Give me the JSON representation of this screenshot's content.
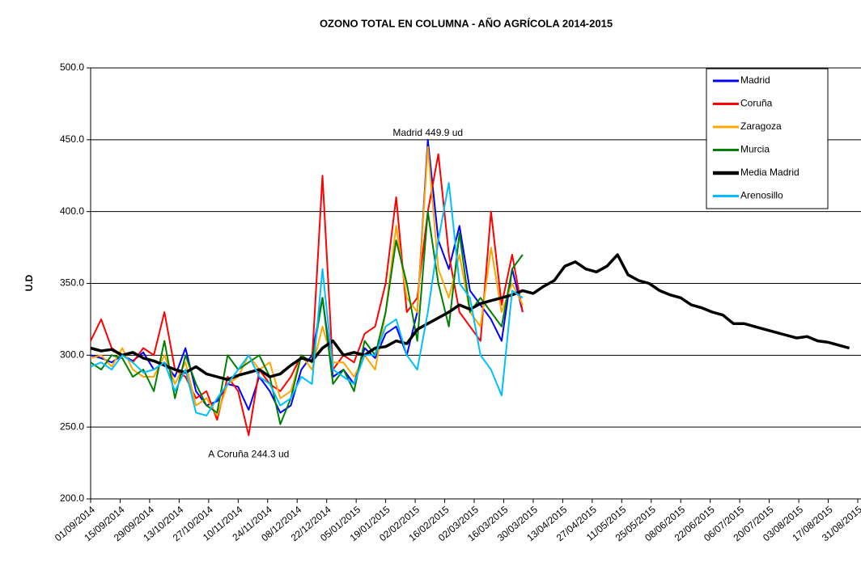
{
  "chart_data": {
    "type": "line",
    "title": "OZONO TOTAL EN COLUMNA  -  AÑO  AGRÍCOLA 2014-2015",
    "y_label": "U.D",
    "x": [
      "2014-09-01",
      "2014-09-06",
      "2014-09-11",
      "2014-09-16",
      "2014-09-21",
      "2014-09-26",
      "2014-10-01",
      "2014-10-06",
      "2014-10-11",
      "2014-10-16",
      "2014-10-21",
      "2014-10-26",
      "2014-10-31",
      "2014-11-05",
      "2014-11-10",
      "2014-11-15",
      "2014-11-20",
      "2014-11-25",
      "2014-11-30",
      "2014-12-05",
      "2014-12-10",
      "2014-12-15",
      "2014-12-20",
      "2014-12-25",
      "2014-12-30",
      "2015-01-04",
      "2015-01-09",
      "2015-01-14",
      "2015-01-19",
      "2015-01-24",
      "2015-01-29",
      "2015-02-03",
      "2015-02-08",
      "2015-02-13",
      "2015-02-18",
      "2015-02-23",
      "2015-02-28",
      "2015-03-05",
      "2015-03-10",
      "2015-03-15",
      "2015-03-20",
      "2015-03-25",
      "2015-03-30",
      "2015-04-04",
      "2015-04-09",
      "2015-04-14",
      "2015-04-19",
      "2015-04-24",
      "2015-04-29",
      "2015-05-04",
      "2015-05-09",
      "2015-05-14",
      "2015-05-19",
      "2015-05-24",
      "2015-05-29",
      "2015-06-03",
      "2015-06-08",
      "2015-06-13",
      "2015-06-18",
      "2015-06-23",
      "2015-06-28",
      "2015-07-03",
      "2015-07-08",
      "2015-07-13",
      "2015-07-18",
      "2015-07-23",
      "2015-07-28",
      "2015-08-02",
      "2015-08-07",
      "2015-08-12",
      "2015-08-17",
      "2015-08-22",
      "2015-08-27"
    ],
    "series": [
      {
        "name": "Madrid",
        "color": "#0000ff",
        "width": 2,
        "values": [
          300,
          298,
          295,
          300,
          296,
          302,
          290,
          295,
          285,
          305,
          275,
          265,
          268,
          280,
          278,
          262,
          285,
          275,
          260,
          265,
          290,
          300,
          340,
          285,
          290,
          280,
          305,
          298,
          315,
          320,
          300,
          330,
          449.9,
          380,
          360,
          390,
          345,
          335,
          325,
          310,
          360,
          330,
          null,
          null,
          null,
          null,
          null,
          null,
          null,
          null,
          null,
          null,
          null,
          null,
          null,
          null,
          null,
          null,
          null,
          null,
          null,
          null,
          null,
          null,
          null,
          null,
          null,
          null,
          null,
          null,
          null,
          null,
          null
        ]
      },
      {
        "name": "Coruña",
        "color": "#ff0000",
        "width": 2,
        "values": [
          310,
          325,
          305,
          300,
          295,
          305,
          300,
          330,
          290,
          285,
          270,
          275,
          255,
          285,
          275,
          244.3,
          290,
          280,
          275,
          285,
          300,
          295,
          425,
          290,
          300,
          295,
          315,
          320,
          350,
          410,
          330,
          340,
          400,
          440,
          370,
          330,
          320,
          310,
          400,
          335,
          370,
          330,
          null,
          null,
          null,
          null,
          null,
          null,
          null,
          null,
          null,
          null,
          null,
          null,
          null,
          null,
          null,
          null,
          null,
          null,
          null,
          null,
          null,
          null,
          null,
          null,
          null,
          null,
          null,
          null,
          null,
          null,
          null
        ]
      },
      {
        "name": "Zaragoza",
        "color": "#ffa500",
        "width": 2,
        "values": [
          298,
          300,
          292,
          305,
          290,
          285,
          285,
          300,
          280,
          295,
          265,
          270,
          258,
          280,
          285,
          300,
          290,
          295,
          270,
          275,
          300,
          290,
          320,
          295,
          295,
          285,
          300,
          290,
          330,
          390,
          340,
          330,
          445,
          360,
          340,
          370,
          330,
          320,
          375,
          330,
          350,
          335,
          null,
          null,
          null,
          null,
          null,
          null,
          null,
          null,
          null,
          null,
          null,
          null,
          null,
          null,
          null,
          null,
          null,
          null,
          null,
          null,
          null,
          null,
          null,
          null,
          null,
          null,
          null,
          null,
          null,
          null,
          null
        ]
      },
      {
        "name": "Murcia",
        "color": "#008000",
        "width": 2,
        "values": [
          295,
          290,
          300,
          298,
          285,
          290,
          275,
          310,
          270,
          300,
          280,
          265,
          260,
          300,
          290,
          295,
          300,
          285,
          252,
          270,
          300,
          295,
          340,
          280,
          290,
          275,
          310,
          300,
          330,
          380,
          350,
          310,
          400,
          350,
          320,
          385,
          330,
          340,
          330,
          320,
          360,
          370,
          null,
          null,
          null,
          null,
          null,
          null,
          null,
          null,
          null,
          null,
          null,
          null,
          null,
          null,
          null,
          null,
          null,
          null,
          null,
          null,
          null,
          null,
          null,
          null,
          null,
          null,
          null,
          null,
          null,
          null,
          null
        ]
      },
      {
        "name": "Media Madrid",
        "color": "#000000",
        "width": 3.5,
        "values": [
          305,
          303,
          304,
          300,
          302,
          298,
          296,
          293,
          290,
          288,
          292,
          287,
          285,
          283,
          286,
          288,
          290,
          285,
          287,
          293,
          298,
          296,
          305,
          310,
          300,
          302,
          300,
          305,
          306,
          310,
          308,
          318,
          322,
          326,
          330,
          335,
          332,
          336,
          338,
          340,
          342,
          345,
          343,
          348,
          352,
          362,
          365,
          360,
          358,
          362,
          370,
          356,
          352,
          350,
          345,
          342,
          340,
          335,
          333,
          330,
          328,
          322,
          322,
          320,
          318,
          316,
          314,
          312,
          313,
          310,
          309,
          307,
          305
        ]
      },
      {
        "name": "Arenosillo",
        "color": "#00bfff",
        "width": 2,
        "values": [
          292,
          295,
          290,
          300,
          295,
          288,
          290,
          295,
          275,
          290,
          260,
          258,
          270,
          280,
          290,
          300,
          285,
          280,
          265,
          270,
          285,
          280,
          360,
          290,
          285,
          280,
          300,
          300,
          320,
          325,
          300,
          290,
          330,
          380,
          420,
          350,
          340,
          300,
          290,
          272,
          345,
          340,
          null,
          null,
          null,
          null,
          null,
          null,
          null,
          null,
          null,
          null,
          null,
          null,
          null,
          null,
          null,
          null,
          null,
          null,
          null,
          null,
          null,
          null,
          null,
          null,
          null,
          null,
          null,
          null,
          null,
          null,
          null
        ]
      }
    ],
    "annotations": [
      {
        "text": "Madrid 449.9 ud",
        "x": "2015-02-08",
        "y": 449.9
      },
      {
        "text": "A Coruña 244.3 ud",
        "x": "2014-11-15",
        "y": 244.3
      }
    ],
    "ylim": [
      200,
      500
    ],
    "yticks": [
      {
        "value": 200,
        "label": "200.0"
      },
      {
        "value": 250,
        "label": "250.0"
      },
      {
        "value": 300,
        "label": "300.0"
      },
      {
        "value": 350,
        "label": "350.0"
      },
      {
        "value": 400,
        "label": "400.0"
      },
      {
        "value": 450,
        "label": "450.0"
      },
      {
        "value": 500,
        "label": "500.0"
      }
    ],
    "xlim": [
      "2014-09-01",
      "2015-08-31"
    ],
    "xticks": [
      {
        "value": "2014-09-01",
        "label": "01/09/2014"
      },
      {
        "value": "2014-09-15",
        "label": "15/09/2014"
      },
      {
        "value": "2014-09-29",
        "label": "29/09/2014"
      },
      {
        "value": "2014-10-13",
        "label": "13/10/2014"
      },
      {
        "value": "2014-10-27",
        "label": "27/10/2014"
      },
      {
        "value": "2014-11-10",
        "label": "10/11/2014"
      },
      {
        "value": "2014-11-24",
        "label": "24/11/2014"
      },
      {
        "value": "2014-12-08",
        "label": "08/12/2014"
      },
      {
        "value": "2014-12-22",
        "label": "22/12/2014"
      },
      {
        "value": "2015-01-05",
        "label": "05/01/2015"
      },
      {
        "value": "2015-01-19",
        "label": "19/01/2015"
      },
      {
        "value": "2015-02-02",
        "label": "02/02/2015"
      },
      {
        "value": "2015-02-16",
        "label": "16/02/2015"
      },
      {
        "value": "2015-03-02",
        "label": "02/03/2015"
      },
      {
        "value": "2015-03-16",
        "label": "16/03/2015"
      },
      {
        "value": "2015-03-30",
        "label": "30/03/2015"
      },
      {
        "value": "2015-04-13",
        "label": "13/04/2015"
      },
      {
        "value": "2015-04-27",
        "label": "27/04/2015"
      },
      {
        "value": "2015-05-11",
        "label": "11/05/2015"
      },
      {
        "value": "2015-05-25",
        "label": "25/05/2015"
      },
      {
        "value": "2015-06-08",
        "label": "08/06/2015"
      },
      {
        "value": "2015-06-22",
        "label": "22/06/2015"
      },
      {
        "value": "2015-07-06",
        "label": "06/07/2015"
      },
      {
        "value": "2015-07-20",
        "label": "20/07/2015"
      },
      {
        "value": "2015-08-03",
        "label": "03/08/2015"
      },
      {
        "value": "2015-08-17",
        "label": "17/08/2015"
      },
      {
        "value": "2015-08-31",
        "label": "31/08/2015"
      }
    ],
    "grid": true,
    "legend": "top-right"
  }
}
